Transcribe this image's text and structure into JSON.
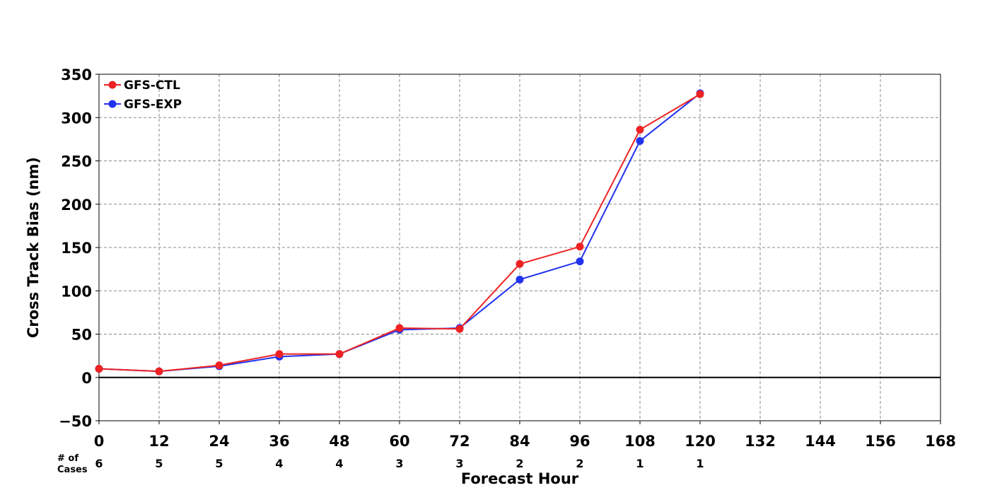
{
  "chart_data": {
    "type": "line",
    "xlabel": "Forecast Hour",
    "ylabel": "Cross Track Bias (nm)",
    "xlim": [
      0,
      168
    ],
    "ylim": [
      -50,
      350
    ],
    "xticks": [
      0,
      12,
      24,
      36,
      48,
      60,
      72,
      84,
      96,
      108,
      120,
      132,
      144,
      156,
      168
    ],
    "yticks": [
      -50,
      0,
      50,
      100,
      150,
      200,
      250,
      300,
      350
    ],
    "xtick_labels": [
      "0",
      "12",
      "24",
      "36",
      "48",
      "60",
      "72",
      "84",
      "96",
      "108",
      "120",
      "132",
      "144",
      "156",
      "168"
    ],
    "ytick_labels": [
      "−50",
      "0",
      "50",
      "100",
      "150",
      "200",
      "250",
      "300",
      "350"
    ],
    "grid": true,
    "grid_style": "dashed",
    "legend_position": "top-left",
    "cases_header": [
      "# of",
      "Cases"
    ],
    "cases": [
      {
        "x": 0,
        "n": "6"
      },
      {
        "x": 12,
        "n": "5"
      },
      {
        "x": 24,
        "n": "5"
      },
      {
        "x": 36,
        "n": "4"
      },
      {
        "x": 48,
        "n": "4"
      },
      {
        "x": 60,
        "n": "3"
      },
      {
        "x": 72,
        "n": "3"
      },
      {
        "x": 84,
        "n": "2"
      },
      {
        "x": 96,
        "n": "2"
      },
      {
        "x": 108,
        "n": "1"
      },
      {
        "x": 120,
        "n": "1"
      }
    ],
    "x": [
      0,
      12,
      24,
      36,
      48,
      60,
      72,
      84,
      96,
      108,
      120
    ],
    "series": [
      {
        "name": "GFS-EXP",
        "color": "#2233ee",
        "values": [
          10,
          7,
          13,
          24,
          27,
          55,
          57,
          113,
          134,
          273,
          328
        ]
      },
      {
        "name": "GFS-CTL",
        "color": "#ee2222",
        "values": [
          10,
          7,
          14,
          27,
          27,
          57,
          56,
          131,
          151,
          286,
          327
        ]
      }
    ],
    "legend_order": [
      "GFS-CTL",
      "GFS-EXP"
    ]
  }
}
